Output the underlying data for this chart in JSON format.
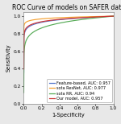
{
  "title": "ROC Curve of models on SAFER data",
  "xlabel": "1-Specificity",
  "ylabel": "Sensitivity",
  "legend_entries": [
    {
      "label": "Feature-based, AUC: 0.957",
      "color": "#5577cc"
    },
    {
      "label": "sota ResNet, AUC: 0.977",
      "color": "#f4a030"
    },
    {
      "label": "sota RR, AUC: 0.94",
      "color": "#55aa55"
    },
    {
      "label": "Our model, AUC: 0.957",
      "color": "#cc3333"
    }
  ],
  "curves": [
    {
      "auc": 0.957,
      "color": "#5577cc",
      "steep": 4.5
    },
    {
      "auc": 0.977,
      "color": "#f4a030",
      "steep": 5.5
    },
    {
      "auc": 0.94,
      "color": "#55aa55",
      "steep": 3.2
    },
    {
      "auc": 0.957,
      "color": "#cc3333",
      "steep": 5.0
    }
  ],
  "title_fontsize": 5.5,
  "label_fontsize": 4.8,
  "tick_fontsize": 4.2,
  "legend_fontsize": 3.6,
  "fig_facecolor": "#e8e8e8",
  "ax_facecolor": "#ffffff",
  "xlim": [
    0.0,
    1.0
  ],
  "ylim": [
    0.0,
    1.05
  ],
  "xticks": [
    0.0,
    0.2,
    0.4,
    0.6,
    0.8,
    1.0
  ],
  "yticks": [
    0.0,
    0.2,
    0.4,
    0.6,
    0.8,
    1.0
  ]
}
